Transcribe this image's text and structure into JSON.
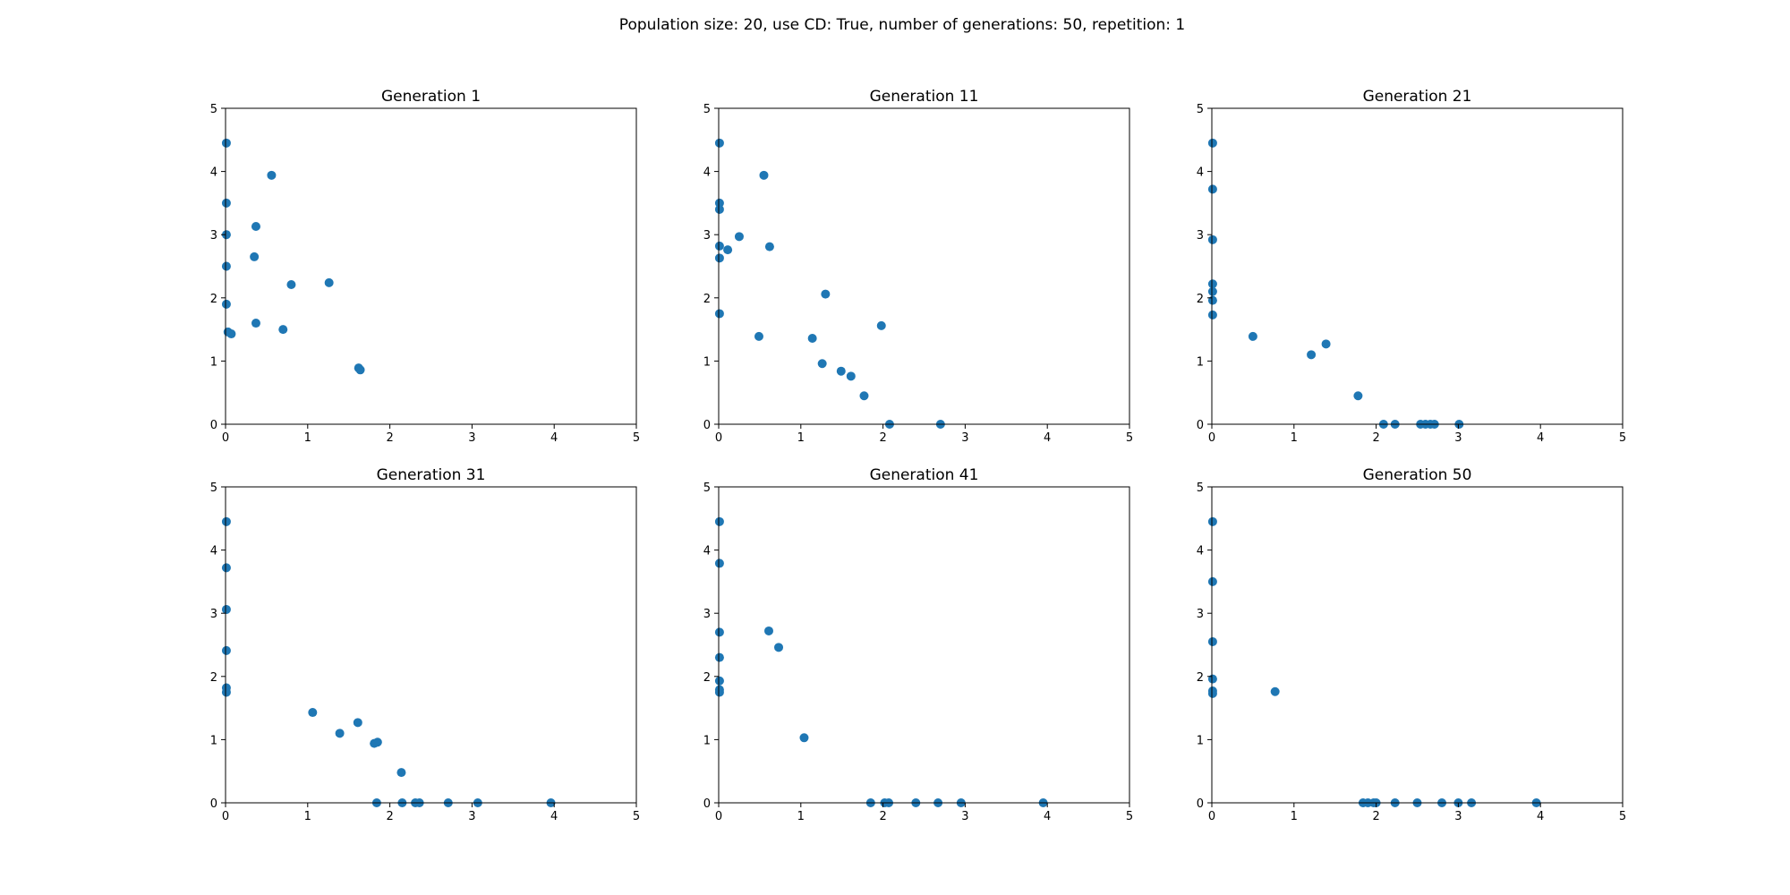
{
  "figure": {
    "title": "Population size: 20, use CD: True, number of generations: 50, repetition: 1"
  },
  "chart_data": [
    {
      "type": "scatter",
      "title": "Generation 1",
      "xlim": [
        0,
        5
      ],
      "ylim": [
        0,
        5
      ],
      "xticks": [
        "0",
        "1",
        "2",
        "3",
        "4",
        "5"
      ],
      "yticks": [
        "0",
        "1",
        "2",
        "3",
        "4",
        "5"
      ],
      "grid": false,
      "color": "#1f77b4",
      "points": [
        [
          0.01,
          4.45
        ],
        [
          0.01,
          3.5
        ],
        [
          0.01,
          3.0
        ],
        [
          0.01,
          2.5
        ],
        [
          0.01,
          1.9
        ],
        [
          0.03,
          1.46
        ],
        [
          0.07,
          1.43
        ],
        [
          0.56,
          3.94
        ],
        [
          0.37,
          3.13
        ],
        [
          0.35,
          2.65
        ],
        [
          0.37,
          1.6
        ],
        [
          0.7,
          1.5
        ],
        [
          0.8,
          2.21
        ],
        [
          1.26,
          2.24
        ],
        [
          1.62,
          0.89
        ],
        [
          1.64,
          0.86
        ]
      ]
    },
    {
      "type": "scatter",
      "title": "Generation 11",
      "xlim": [
        0,
        5
      ],
      "ylim": [
        0,
        5
      ],
      "xticks": [
        "0",
        "1",
        "2",
        "3",
        "4",
        "5"
      ],
      "yticks": [
        "0",
        "1",
        "2",
        "3",
        "4",
        "5"
      ],
      "grid": false,
      "color": "#1f77b4",
      "points": [
        [
          0.01,
          4.45
        ],
        [
          0.01,
          3.5
        ],
        [
          0.01,
          3.4
        ],
        [
          0.01,
          2.82
        ],
        [
          0.01,
          2.63
        ],
        [
          0.01,
          1.75
        ],
        [
          0.11,
          2.76
        ],
        [
          0.25,
          2.97
        ],
        [
          0.55,
          3.94
        ],
        [
          0.62,
          2.81
        ],
        [
          0.49,
          1.39
        ],
        [
          1.3,
          2.06
        ],
        [
          1.14,
          1.36
        ],
        [
          1.98,
          1.56
        ],
        [
          1.26,
          0.96
        ],
        [
          1.49,
          0.84
        ],
        [
          1.61,
          0.76
        ],
        [
          1.77,
          0.45
        ],
        [
          2.08,
          0.0
        ],
        [
          2.7,
          0.0
        ]
      ]
    },
    {
      "type": "scatter",
      "title": "Generation 21",
      "xlim": [
        0,
        5
      ],
      "ylim": [
        0,
        5
      ],
      "xticks": [
        "0",
        "1",
        "2",
        "3",
        "4",
        "5"
      ],
      "yticks": [
        "0",
        "1",
        "2",
        "3",
        "4",
        "5"
      ],
      "grid": false,
      "color": "#1f77b4",
      "points": [
        [
          0.01,
          4.45
        ],
        [
          0.01,
          3.72
        ],
        [
          0.01,
          2.92
        ],
        [
          0.01,
          2.22
        ],
        [
          0.01,
          2.1
        ],
        [
          0.01,
          1.96
        ],
        [
          0.01,
          1.73
        ],
        [
          0.5,
          1.39
        ],
        [
          1.21,
          1.1
        ],
        [
          1.39,
          1.27
        ],
        [
          1.78,
          0.45
        ],
        [
          2.09,
          0.0
        ],
        [
          2.23,
          0.0
        ],
        [
          2.54,
          0.0
        ],
        [
          2.6,
          0.0
        ],
        [
          2.66,
          0.0
        ],
        [
          2.71,
          0.0
        ],
        [
          3.01,
          0.0
        ]
      ]
    },
    {
      "type": "scatter",
      "title": "Generation 31",
      "xlim": [
        0,
        5
      ],
      "ylim": [
        0,
        5
      ],
      "xticks": [
        "0",
        "1",
        "2",
        "3",
        "4",
        "5"
      ],
      "yticks": [
        "0",
        "1",
        "2",
        "3",
        "4",
        "5"
      ],
      "grid": false,
      "color": "#1f77b4",
      "points": [
        [
          0.01,
          4.45
        ],
        [
          0.01,
          3.72
        ],
        [
          0.01,
          3.06
        ],
        [
          0.01,
          2.41
        ],
        [
          0.01,
          1.82
        ],
        [
          0.01,
          1.75
        ],
        [
          1.06,
          1.43
        ],
        [
          1.39,
          1.1
        ],
        [
          1.61,
          1.27
        ],
        [
          1.81,
          0.94
        ],
        [
          1.85,
          0.96
        ],
        [
          2.14,
          0.48
        ],
        [
          1.84,
          0.0
        ],
        [
          2.15,
          0.0
        ],
        [
          2.31,
          0.0
        ],
        [
          2.36,
          0.0
        ],
        [
          2.71,
          0.0
        ],
        [
          3.07,
          0.0
        ],
        [
          3.96,
          0.0
        ]
      ]
    },
    {
      "type": "scatter",
      "title": "Generation 41",
      "xlim": [
        0,
        5
      ],
      "ylim": [
        0,
        5
      ],
      "xticks": [
        "0",
        "1",
        "2",
        "3",
        "4",
        "5"
      ],
      "yticks": [
        "0",
        "1",
        "2",
        "3",
        "4",
        "5"
      ],
      "grid": false,
      "color": "#1f77b4",
      "points": [
        [
          0.01,
          4.45
        ],
        [
          0.01,
          3.79
        ],
        [
          0.01,
          2.7
        ],
        [
          0.01,
          2.3
        ],
        [
          0.01,
          1.93
        ],
        [
          0.01,
          1.79
        ],
        [
          0.01,
          1.75
        ],
        [
          0.61,
          2.72
        ],
        [
          0.73,
          2.46
        ],
        [
          1.04,
          1.03
        ],
        [
          1.85,
          0.0
        ],
        [
          2.02,
          0.0
        ],
        [
          2.07,
          0.0
        ],
        [
          2.4,
          0.0
        ],
        [
          2.67,
          0.0
        ],
        [
          2.95,
          0.0
        ],
        [
          3.95,
          0.0
        ]
      ]
    },
    {
      "type": "scatter",
      "title": "Generation 50",
      "xlim": [
        0,
        5
      ],
      "ylim": [
        0,
        5
      ],
      "xticks": [
        "0",
        "1",
        "2",
        "3",
        "4",
        "5"
      ],
      "yticks": [
        "0",
        "1",
        "2",
        "3",
        "4",
        "5"
      ],
      "grid": false,
      "color": "#1f77b4",
      "points": [
        [
          0.01,
          4.45
        ],
        [
          0.01,
          3.5
        ],
        [
          0.01,
          2.55
        ],
        [
          0.01,
          1.96
        ],
        [
          0.01,
          1.77
        ],
        [
          0.01,
          1.73
        ],
        [
          0.77,
          1.76
        ],
        [
          1.84,
          0.0
        ],
        [
          1.9,
          0.0
        ],
        [
          1.97,
          0.0
        ],
        [
          2.0,
          0.0
        ],
        [
          2.23,
          0.0
        ],
        [
          2.5,
          0.0
        ],
        [
          2.8,
          0.0
        ],
        [
          3.0,
          0.0
        ],
        [
          3.16,
          0.0
        ],
        [
          3.95,
          0.0
        ]
      ]
    }
  ]
}
